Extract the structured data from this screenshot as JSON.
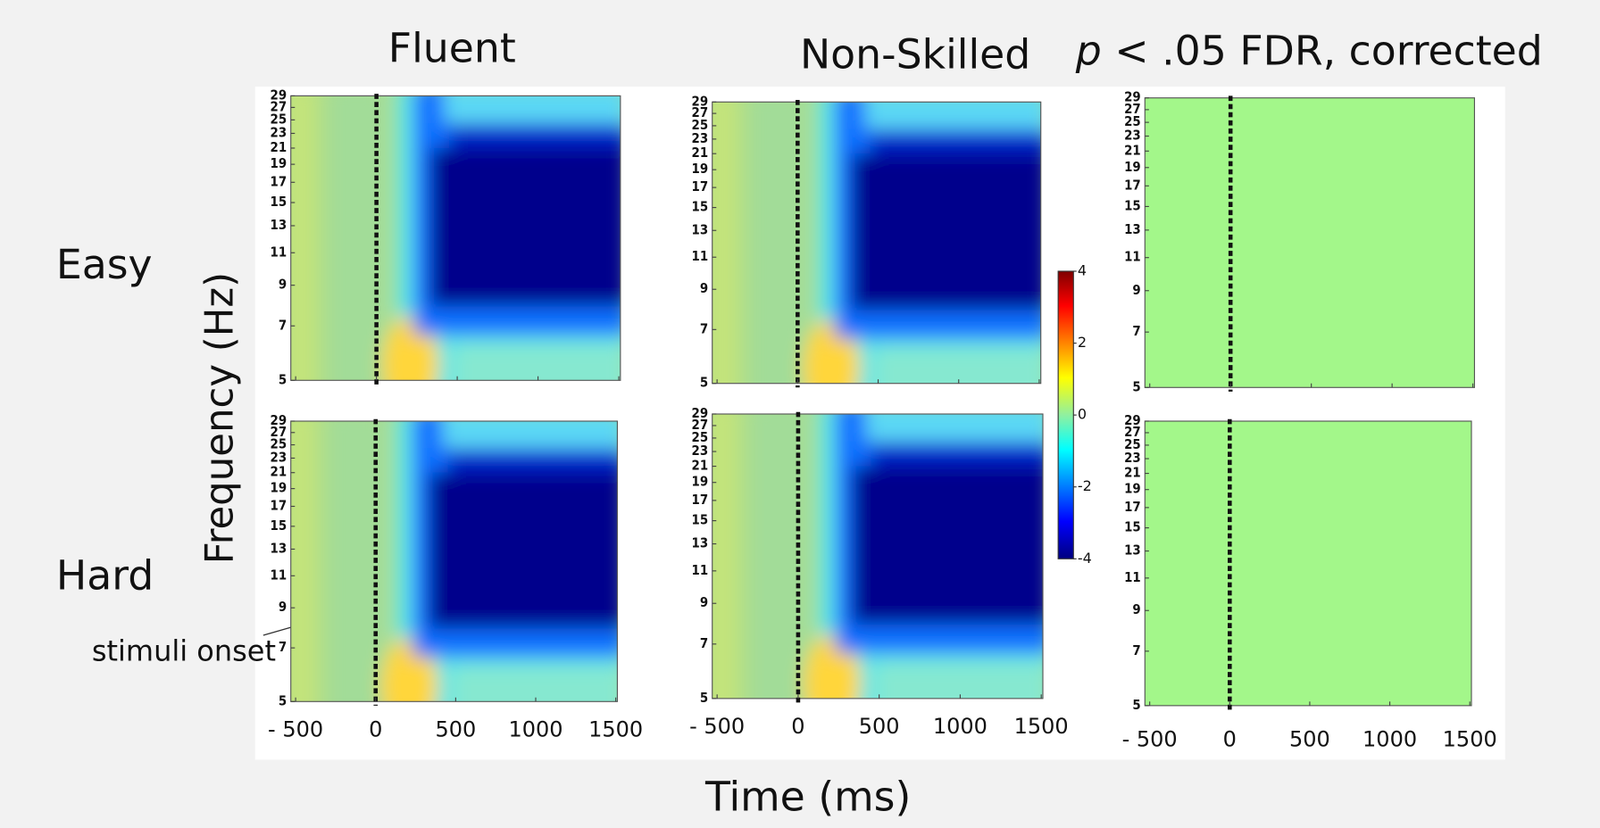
{
  "columns": [
    "Fluent",
    "Non-Skilled"
  ],
  "significance_title": {
    "p": "p",
    "text": "< .05 FDR, corrected"
  },
  "rows": [
    "Easy",
    "Hard"
  ],
  "y_axis_label": "Frequency (Hz)",
  "x_axis_label": "Time (ms)",
  "annotation": "stimuli onset",
  "xlim": [
    -530,
    1510
  ],
  "xticks": [
    {
      "value": -500,
      "label": "- 500"
    },
    0,
    500,
    1000,
    1500
  ],
  "ylim": [
    5,
    29
  ],
  "ylog": true,
  "yticks": [
    5,
    7,
    9,
    11,
    13,
    15,
    17,
    19,
    21,
    23,
    25,
    27,
    29
  ],
  "colorbar": {
    "lim": [
      -4,
      4
    ],
    "ticks": [
      4,
      2,
      0,
      -2,
      -4
    ]
  },
  "significant_color": "#a3f78a"
}
